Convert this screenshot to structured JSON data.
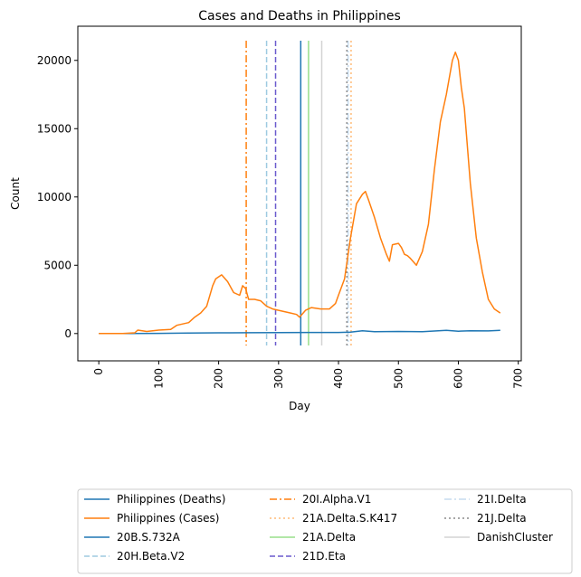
{
  "chart_data": {
    "type": "line",
    "title": "Cases and Deaths in Philippines",
    "xlabel": "Day",
    "ylabel": "Count",
    "xlim": [
      -35,
      705
    ],
    "ylim": [
      -2000,
      22500
    ],
    "xticks": [
      0,
      100,
      200,
      300,
      400,
      500,
      600,
      700
    ],
    "yticks": [
      0,
      5000,
      10000,
      15000,
      20000
    ],
    "grid": false,
    "legend_position": "bottom",
    "series": [
      {
        "name": "Philippines (Deaths)",
        "color": "#1f77b4",
        "x": [
          0,
          50,
          100,
          150,
          200,
          250,
          300,
          350,
          400,
          420,
          440,
          460,
          500,
          540,
          580,
          600,
          620,
          650,
          670
        ],
        "y": [
          0,
          5,
          15,
          30,
          50,
          60,
          70,
          80,
          80,
          100,
          200,
          130,
          150,
          130,
          230,
          170,
          200,
          190,
          230
        ]
      },
      {
        "name": "Philippines (Cases)",
        "color": "#ff7f0e",
        "x": [
          0,
          40,
          60,
          65,
          80,
          100,
          120,
          130,
          150,
          160,
          170,
          180,
          190,
          195,
          205,
          215,
          225,
          235,
          240,
          245,
          250,
          260,
          270,
          280,
          290,
          300,
          320,
          330,
          335,
          345,
          355,
          370,
          385,
          395,
          400,
          410,
          420,
          430,
          440,
          445,
          450,
          460,
          470,
          480,
          485,
          490,
          500,
          505,
          510,
          515,
          520,
          530,
          540,
          550,
          560,
          570,
          580,
          590,
          595,
          600,
          605,
          610,
          620,
          630,
          640,
          650,
          660,
          670
        ],
        "y": [
          0,
          0,
          50,
          250,
          150,
          250,
          300,
          600,
          800,
          1200,
          1500,
          2000,
          3500,
          4000,
          4300,
          3800,
          3000,
          2800,
          3500,
          3300,
          2500,
          2500,
          2400,
          2000,
          1800,
          1700,
          1500,
          1400,
          1200,
          1700,
          1900,
          1800,
          1800,
          2200,
          2800,
          4000,
          7000,
          9500,
          10200,
          10400,
          9800,
          8500,
          7000,
          5800,
          5300,
          6500,
          6600,
          6300,
          5800,
          5700,
          5500,
          5000,
          6000,
          8000,
          12000,
          15500,
          17500,
          20000,
          20600,
          20000,
          18000,
          16500,
          11000,
          7000,
          4500,
          2500,
          1800,
          1500
        ]
      }
    ],
    "vertical_lines": [
      {
        "name": "20B.S.732A",
        "x": 337,
        "color": "#1f77b4",
        "style": "solid"
      },
      {
        "name": "20H.Beta.V2",
        "x": 280,
        "color": "#9ecae1",
        "style": "dashed"
      },
      {
        "name": "20I.Alpha.V1",
        "x": 246,
        "color": "#ff7f0e",
        "style": "dashdot"
      },
      {
        "name": "21A.Delta.S.K417",
        "x": 421,
        "color": "#ffbb78",
        "style": "dotted"
      },
      {
        "name": "21A.Delta",
        "x": 350,
        "color": "#98df8a",
        "style": "solid"
      },
      {
        "name": "21D.Eta",
        "x": 295,
        "color": "#6a5acd",
        "style": "dashed"
      },
      {
        "name": "21I.Delta",
        "x": 416,
        "color": "#c6dbef",
        "style": "dashdot"
      },
      {
        "name": "21J.Delta",
        "x": 414,
        "color": "#8c8c8c",
        "style": "dotted"
      },
      {
        "name": "DanishCluster",
        "x": 372,
        "color": "#d3d3d3",
        "style": "solid"
      }
    ],
    "legend": [
      [
        "Philippines (Deaths)",
        "Philippines (Cases)",
        "20B.S.732A",
        "20H.Beta.V2"
      ],
      [
        "20I.Alpha.V1",
        "21A.Delta.S.K417",
        "21A.Delta",
        "21D.Eta"
      ],
      [
        "21I.Delta",
        "21J.Delta",
        "DanishCluster"
      ]
    ]
  }
}
